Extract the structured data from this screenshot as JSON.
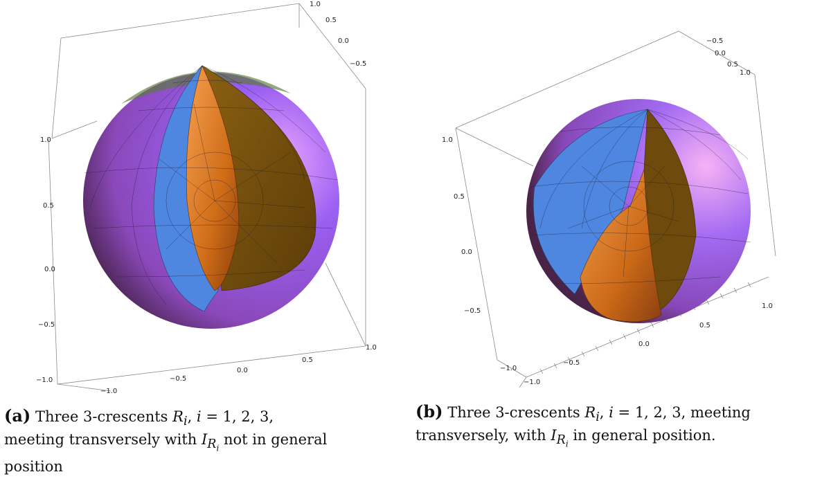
{
  "panels": [
    {
      "id": "a",
      "ticks_left": [
        "1.0",
        "0.5",
        "0.0",
        "−0.5",
        "−1.0"
      ],
      "ticks_bottom": [
        "−0.5",
        "0.0",
        "0.5",
        "1.0"
      ],
      "ticks_bottom_left": "−1.0",
      "ticks_top": [
        "1.0",
        "0.5",
        "0.0",
        "−0.5"
      ],
      "caption": {
        "label": "(a)",
        "text_1": "Three 3-crescents",
        "sym_R": "R",
        "sub_i": "i",
        "sep": ", ",
        "sym_i": "i",
        "eq": " = 1, 2, 3,",
        "line2": "meeting transversely with",
        "sym_I": "I",
        "sub_R": "R",
        "sub_sub_i": "i",
        "line2_tail": " not in general",
        "line3": "position"
      }
    },
    {
      "id": "b",
      "ticks_left": [
        "1.0",
        "0.5",
        "0.0",
        "−0.5",
        "−1.0"
      ],
      "ticks_bottom": [
        "−1.0",
        "−0.5",
        "0.0",
        "0.5",
        "1.0"
      ],
      "ticks_top": [
        "−0.5",
        "0.0",
        "0.5",
        "1.0"
      ],
      "caption": {
        "label": "(b)",
        "text_1": "Three 3-crescents",
        "sym_R": "R",
        "sub_i": "i",
        "sep": ", ",
        "sym_i": "i",
        "eq": " = 1, 2, 3, meeting",
        "line2": "transversely, with",
        "sym_I": "I",
        "sub_R": "R",
        "sub_sub_i": "i",
        "line2_tail": " in general position."
      }
    }
  ],
  "colors": {
    "purple": "#8a5cf0",
    "magenta": "#b05fb0",
    "blue": "#4f86e0",
    "orange": "#d8761f",
    "brown": "#6e4a0c",
    "box": "#888888"
  }
}
